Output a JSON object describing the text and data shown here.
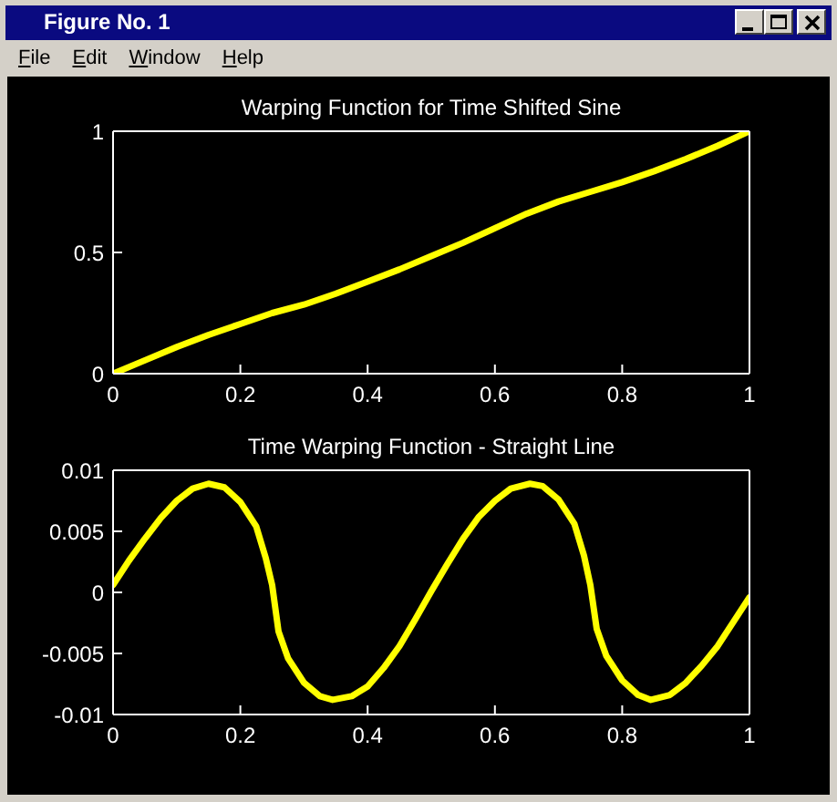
{
  "chart_data": [
    {
      "type": "line",
      "title": "Warping Function for Time Shifted Sine",
      "annotations": [
        "Figure No. 1",
        "File",
        "Edit",
        "Window",
        "Help"
      ],
      "x": [
        0,
        0.05,
        0.1,
        0.15,
        0.2,
        0.25,
        0.3,
        0.35,
        0.4,
        0.45,
        0.5,
        0.55,
        0.6,
        0.65,
        0.7,
        0.75,
        0.8,
        0.85,
        0.9,
        0.95,
        1
      ],
      "values": [
        0,
        0.055,
        0.11,
        0.16,
        0.205,
        0.25,
        0.285,
        0.33,
        0.38,
        0.43,
        0.485,
        0.54,
        0.6,
        0.66,
        0.71,
        0.75,
        0.79,
        0.835,
        0.885,
        0.94,
        1
      ],
      "color": "#ffff00",
      "line_style": "solid",
      "xlim": [
        0,
        1
      ],
      "xticks": [
        0,
        0.2,
        0.4,
        0.6,
        0.8,
        1
      ],
      "ylim": [
        0,
        1
      ],
      "yticks": [
        0,
        0.5,
        1
      ]
    },
    {
      "type": "line",
      "title": "Time Warping Function - Straight Line",
      "x": [
        0,
        0.025,
        0.05,
        0.075,
        0.1,
        0.125,
        0.15,
        0.175,
        0.2,
        0.225,
        0.24,
        0.25,
        0.26,
        0.275,
        0.3,
        0.325,
        0.345,
        0.375,
        0.4,
        0.425,
        0.45,
        0.475,
        0.5,
        0.525,
        0.55,
        0.575,
        0.6,
        0.625,
        0.655,
        0.675,
        0.7,
        0.725,
        0.74,
        0.75,
        0.76,
        0.775,
        0.8,
        0.825,
        0.845,
        0.875,
        0.9,
        0.925,
        0.95,
        0.975,
        1
      ],
      "values": [
        0.0006,
        0.0026,
        0.0044,
        0.0061,
        0.0075,
        0.0085,
        0.0089,
        0.0086,
        0.0074,
        0.0054,
        0.0028,
        0.0006,
        -0.0032,
        -0.0054,
        -0.0074,
        -0.0085,
        -0.0088,
        -0.0085,
        -0.0077,
        -0.0062,
        -0.0044,
        -0.0022,
        0.0001,
        0.0023,
        0.0044,
        0.0062,
        0.0075,
        0.0085,
        0.0089,
        0.0087,
        0.0076,
        0.0056,
        0.003,
        0.0006,
        -0.003,
        -0.0052,
        -0.0072,
        -0.0084,
        -0.0088,
        -0.0084,
        -0.0074,
        -0.006,
        -0.0044,
        -0.0024,
        -0.0004
      ],
      "color": "#ffff00",
      "line_style": "solid",
      "xlim": [
        0,
        1
      ],
      "xticks": [
        0,
        0.2,
        0.4,
        0.6,
        0.8,
        1
      ],
      "ylim": [
        -0.01,
        0.01
      ],
      "yticks": [
        -0.01,
        -0.005,
        0,
        0.005,
        0.01
      ]
    }
  ]
}
